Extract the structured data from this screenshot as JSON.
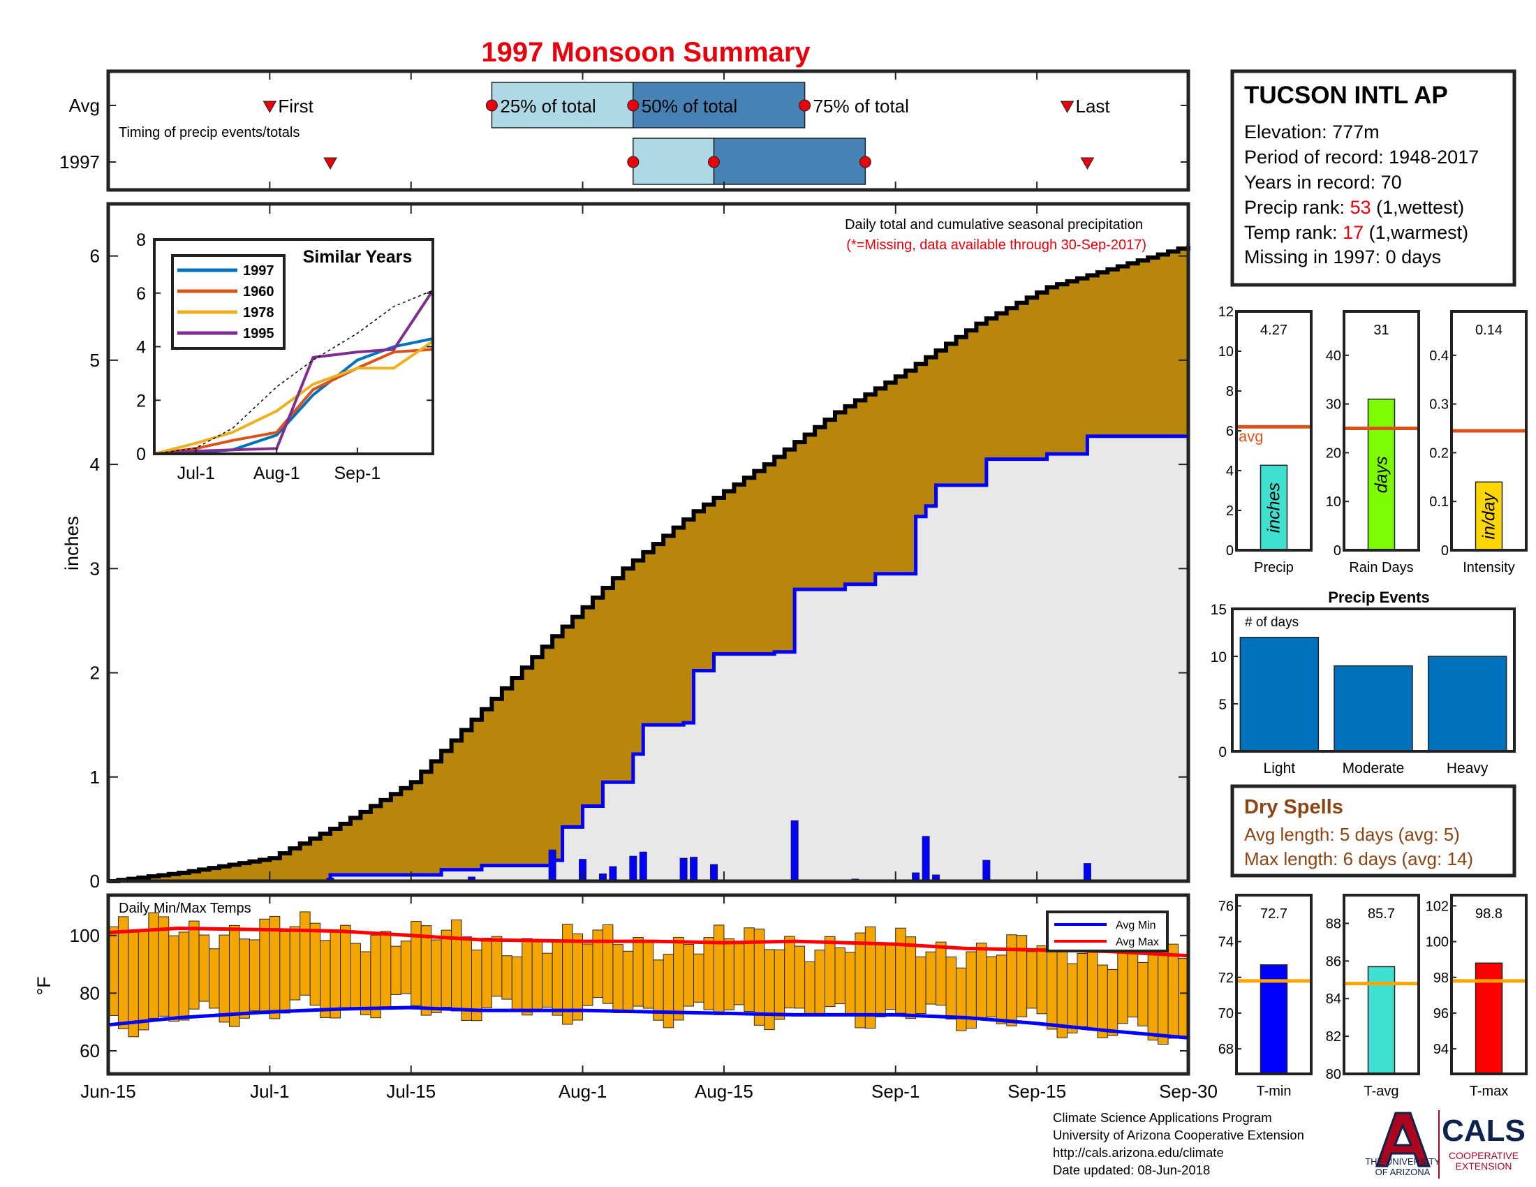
{
  "title": "1997 Monsoon Summary",
  "station": {
    "name": "TUCSON INTL AP",
    "elevation": "Elevation: 777m",
    "period": "Period of record: 1948-2017",
    "years": "Years in record: 70",
    "precip_rank_label": "Precip rank: ",
    "precip_rank_value": "53",
    "precip_rank_note": " (1,wettest)",
    "temp_rank_label": "Temp rank: ",
    "temp_rank_value": "17",
    "temp_rank_note": " (1,warmest)",
    "missing": "Missing in 1997: 0 days"
  },
  "colors": {
    "title": "#e8000b",
    "avg_cumulative_fill": "#b8860b",
    "avg_fill_lower": "#e8e8e8",
    "year_line": "#0000ff",
    "daily_bars": "#0000ff",
    "temp_bars": "#f5a500",
    "avg_min_line": "#0000ff",
    "avg_max_line": "#ff0000",
    "light_box": "#add8e6",
    "dark_box": "#4682b4",
    "avg_line": "#d95319",
    "precip_bar": "#40e0d0",
    "raindays_bar": "#7cfc00",
    "intensity_bar": "#ffd700",
    "events_bar": "#0072bd",
    "dry_spells": "#8b4513",
    "tmin_bar": "#0000ff",
    "tavg_bar": "#40e0d0",
    "tmax_bar": "#ff0000",
    "temp_avg_line": "#ffa500",
    "similar_1997": "#0072bd",
    "similar_1960": "#d95319",
    "similar_1978": "#edb120",
    "similar_1995": "#7e2f8e"
  },
  "timing": {
    "row_labels": [
      "Avg",
      "1997"
    ],
    "subtitle": "Timing of precip events/totals",
    "first_label": "First",
    "last_label": "Last",
    "q25_label": "25% of total",
    "q50_label": "50% of total",
    "q75_label": "75% of total",
    "avg": {
      "first": "Jul-1",
      "q25": "Jul-23",
      "q50": "Aug-6",
      "q75": "Aug-23",
      "last": "Sep-18"
    },
    "y1997": {
      "first": "Jul-7",
      "q25": "Aug-6",
      "q50": "Aug-14",
      "q75": "Aug-29",
      "last": "Sep-20"
    }
  },
  "chart_data": [
    {
      "type": "area",
      "name": "Daily total and cumulative seasonal precipitation",
      "note": "(*=Missing, data available through 30-Sep-2017)",
      "ylabel": "inches",
      "ylim": [
        0,
        6.5
      ],
      "yticks": [
        0,
        1,
        2,
        3,
        4,
        5,
        6
      ],
      "xticks": [
        "Jun-15",
        "Jul-1",
        "Jul-15",
        "Aug-1",
        "Aug-15",
        "Sep-1",
        "Sep-15",
        "Sep-30"
      ],
      "avg_cumulative": {
        "x": [
          "Jun-15",
          "Jun-22",
          "Jul-1",
          "Jul-8",
          "Jul-15",
          "Jul-22",
          "Jul-29",
          "Aug-5",
          "Aug-12",
          "Aug-19",
          "Aug-26",
          "Sep-2",
          "Sep-9",
          "Sep-16",
          "Sep-23",
          "Sep-30"
        ],
        "values": [
          0.0,
          0.08,
          0.22,
          0.55,
          0.95,
          1.65,
          2.35,
          3.0,
          3.55,
          4.0,
          4.5,
          4.9,
          5.35,
          5.7,
          5.9,
          6.1
        ]
      },
      "cumulative_1997": {
        "x": [
          "Jun-15",
          "Jul-7",
          "Jul-18",
          "Jul-22",
          "Jul-29",
          "Jul-30",
          "Aug-1",
          "Aug-3",
          "Aug-6",
          "Aug-7",
          "Aug-11",
          "Aug-12",
          "Aug-14",
          "Aug-20",
          "Aug-22",
          "Aug-27",
          "Aug-30",
          "Sep-3",
          "Sep-4",
          "Sep-5",
          "Sep-10",
          "Sep-16",
          "Sep-20",
          "Sep-29"
        ],
        "values": [
          0.0,
          0.06,
          0.11,
          0.15,
          0.2,
          0.52,
          0.72,
          0.95,
          1.22,
          1.5,
          1.52,
          2.02,
          2.18,
          2.2,
          2.8,
          2.85,
          2.95,
          3.5,
          3.6,
          3.8,
          4.05,
          4.1,
          4.27,
          4.27
        ]
      },
      "daily_1997": {
        "x": [
          "Jul-7",
          "Jul-21",
          "Jul-29",
          "Aug-1",
          "Aug-3",
          "Aug-4",
          "Aug-6",
          "Aug-7",
          "Aug-11",
          "Aug-12",
          "Aug-14",
          "Aug-22",
          "Aug-28",
          "Sep-3",
          "Sep-4",
          "Sep-5",
          "Sep-10",
          "Sep-20"
        ],
        "values": [
          0.03,
          0.04,
          0.3,
          0.21,
          0.07,
          0.14,
          0.24,
          0.28,
          0.22,
          0.23,
          0.16,
          0.58,
          0.02,
          0.08,
          0.43,
          0.06,
          0.2,
          0.17
        ]
      }
    },
    {
      "type": "line",
      "name": "Similar Years",
      "ylim": [
        0,
        8
      ],
      "yticks": [
        0,
        2,
        4,
        6,
        8
      ],
      "xticks": [
        "Jul-1",
        "Aug-1",
        "Sep-1"
      ],
      "x": [
        "Jun-15",
        "Jul-1",
        "Jul-15",
        "Aug-1",
        "Aug-15",
        "Sep-1",
        "Sep-15",
        "Sep-30"
      ],
      "series": [
        {
          "name": "1997",
          "values": [
            0,
            0.05,
            0.15,
            0.7,
            2.2,
            3.5,
            4.0,
            4.3
          ]
        },
        {
          "name": "1960",
          "values": [
            0,
            0.2,
            0.5,
            0.8,
            2.4,
            3.2,
            3.8,
            3.9
          ]
        },
        {
          "name": "1978",
          "values": [
            0,
            0.4,
            0.8,
            1.6,
            2.6,
            3.2,
            3.2,
            4.2
          ]
        },
        {
          "name": "1995",
          "values": [
            0,
            0.1,
            0.15,
            0.2,
            3.6,
            3.8,
            3.9,
            6.1
          ]
        },
        {
          "name": "avg",
          "values": [
            0,
            0.22,
            0.95,
            2.5,
            3.5,
            4.5,
            5.5,
            6.1
          ]
        }
      ]
    },
    {
      "type": "bar",
      "name": "Daily Min/Max Temps",
      "ylabel": "°F",
      "ylim": [
        52,
        114
      ],
      "yticks": [
        60,
        80,
        100
      ],
      "legend": [
        "Avg Min",
        "Avg Max"
      ],
      "x": [
        "Jun-15",
        "Jun-22",
        "Jul-1",
        "Jul-8",
        "Jul-15",
        "Jul-22",
        "Aug-1",
        "Aug-8",
        "Aug-15",
        "Aug-22",
        "Sep-1",
        "Sep-8",
        "Sep-15",
        "Sep-22",
        "Sep-30"
      ],
      "avg_max": [
        101,
        102.5,
        102,
        101.5,
        100,
        98.5,
        98,
        98,
        97.5,
        98,
        97,
        95.5,
        95,
        94.5,
        93
      ],
      "avg_min": [
        69,
        71.5,
        73.5,
        74.5,
        75,
        74,
        74,
        73.5,
        73,
        72.5,
        72.5,
        71.5,
        69.5,
        67,
        64.5
      ]
    },
    {
      "type": "bar",
      "name": "Precip",
      "values": [
        4.27
      ],
      "avg": 6.2,
      "value_label": "4.27",
      "inside_label": "inches",
      "xlabel": "Precip",
      "avg_label": "avg",
      "ylim": [
        0,
        12
      ],
      "yticks": [
        0,
        2,
        4,
        6,
        8,
        10,
        12
      ]
    },
    {
      "type": "bar",
      "name": "Rain Days",
      "values": [
        31
      ],
      "avg": 25,
      "value_label": "31",
      "inside_label": "days",
      "xlabel": "Rain Days",
      "ylim": [
        0,
        49
      ],
      "yticks": [
        0,
        10,
        20,
        30,
        40
      ]
    },
    {
      "type": "bar",
      "name": "Intensity",
      "values": [
        0.14
      ],
      "avg": 0.245,
      "value_label": "0.14",
      "inside_label": "in/day",
      "xlabel": "Intensity",
      "ylim": [
        0,
        0.49
      ],
      "yticks": [
        0,
        0.1,
        0.2,
        0.3,
        0.4
      ]
    },
    {
      "type": "bar",
      "title": "Precip Events",
      "ylabel_inside": "# of days",
      "categories": [
        "Light",
        "Moderate",
        "Heavy"
      ],
      "values": [
        12,
        9,
        10
      ],
      "ylim": [
        0,
        15
      ],
      "yticks": [
        0,
        5,
        10,
        15
      ]
    },
    {
      "type": "bar",
      "name": "T-min",
      "values": [
        72.7
      ],
      "avg": 71.8,
      "value_label": "72.7",
      "xlabel": "T-min",
      "ylim": [
        66.6,
        76.6
      ],
      "yticks": [
        68,
        70,
        72,
        74,
        76
      ]
    },
    {
      "type": "bar",
      "name": "T-avg",
      "values": [
        85.7
      ],
      "avg": 84.8,
      "value_label": "85.7",
      "xlabel": "T-avg",
      "ylim": [
        80,
        89.5
      ],
      "yticks": [
        80,
        82,
        84,
        86,
        88
      ]
    },
    {
      "type": "bar",
      "name": "T-max",
      "values": [
        98.8
      ],
      "avg": 97.8,
      "value_label": "98.8",
      "xlabel": "T-max",
      "ylim": [
        92.6,
        102.6
      ],
      "yticks": [
        94,
        96,
        98,
        100,
        102
      ]
    }
  ],
  "dry_spells": {
    "title": "Dry Spells",
    "avg_length": "Avg length: 5 days (avg: 5)",
    "max_length": "Max length: 6 days (avg: 14)"
  },
  "footer": {
    "line1": "Climate Science Applications Program",
    "line2": "University of Arizona Cooperative Extension",
    "line3": "http://cals.arizona.edu/climate",
    "line4": " Date updated: 08-Jun-2018"
  },
  "logos": {
    "ua_line1": "THE UNIVERSITY",
    "ua_line2": "OF ARIZONA",
    "cals": "CALS",
    "cals_line1": "COOPERATIVE",
    "cals_line2": "EXTENSION"
  }
}
